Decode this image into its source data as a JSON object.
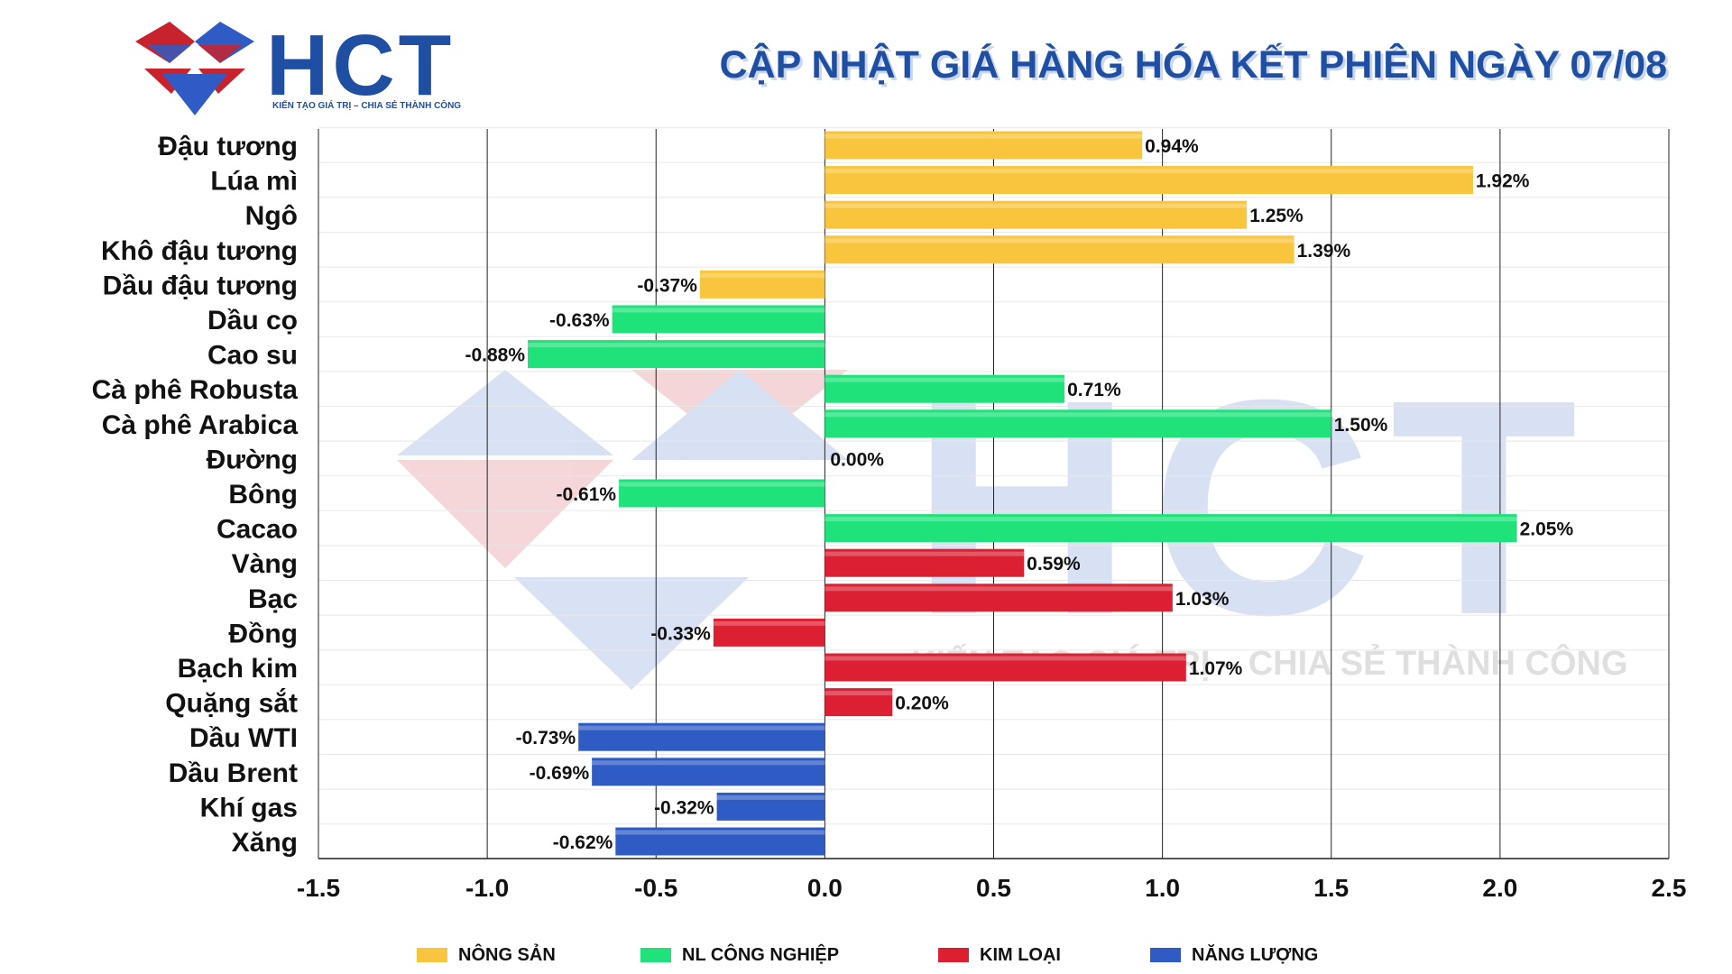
{
  "header": {
    "logo_text": "HCT",
    "logo_tagline": "KIẾN TẠO GIÁ TRỊ – CHIA SẺ THÀNH CÔNG",
    "title": "CẬP NHẬT GIÁ HÀNG HÓA KẾT PHIÊN NGÀY 07/08"
  },
  "watermark": {
    "text": "HCT",
    "tagline": "KIẾN TẠO GIÁ TRỊ – CHIA SẺ THÀNH CÔNG"
  },
  "colors": {
    "NÔNG SẢN": "#f9c53d",
    "NL CÔNG NGHIỆP": "#1fe27a",
    "KIM LOẠI": "#dd1f32",
    "NĂNG LƯỢNG": "#2f5cc4",
    "brand": "#1f4fa3"
  },
  "legend": {
    "items": [
      "NÔNG SẢN",
      "NL CÔNG NGHIỆP",
      "KIM LOẠI",
      "NĂNG LƯỢNG"
    ]
  },
  "chart_data": {
    "type": "bar",
    "orientation": "horizontal",
    "title": "CẬP NHẬT GIÁ HÀNG HÓA KẾT PHIÊN NGÀY 07/08",
    "xlabel": "",
    "ylabel": "",
    "xlim": [
      -1.5,
      2.5
    ],
    "xticks": [
      -1.5,
      -1.0,
      -0.5,
      0.0,
      0.5,
      1.0,
      1.5,
      2.0,
      2.5
    ],
    "xtick_labels": [
      "-1.5",
      "-1.0",
      "-0.5",
      "0.0",
      "0.5",
      "1.0",
      "1.5",
      "2.0",
      "2.5"
    ],
    "grid": "vertical",
    "legend_position": "bottom",
    "categories": [
      "Đậu tương",
      "Lúa mì",
      "Ngô",
      "Khô đậu tương",
      "Dầu đậu tương",
      "Dầu cọ",
      "Cao su",
      "Cà phê Robusta",
      "Cà phê Arabica",
      "Đường",
      "Bông",
      "Cacao",
      "Vàng",
      "Bạc",
      "Đồng",
      "Bạch kim",
      "Quặng sắt",
      "Dầu WTI",
      "Dầu Brent",
      "Khí gas",
      "Xăng"
    ],
    "values": [
      0.94,
      1.92,
      1.25,
      1.39,
      -0.37,
      -0.63,
      -0.88,
      0.71,
      1.5,
      0.0,
      -0.61,
      2.05,
      0.59,
      1.03,
      -0.33,
      1.07,
      0.2,
      -0.73,
      -0.69,
      -0.32,
      -0.62
    ],
    "value_labels": [
      "0.94%",
      "1.92%",
      "1.25%",
      "1.39%",
      "-0.37%",
      "-0.63%",
      "-0.88%",
      "0.71%",
      "1.50%",
      "0.00%",
      "-0.61%",
      "2.05%",
      "0.59%",
      "1.03%",
      "-0.33%",
      "1.07%",
      "0.20%",
      "-0.73%",
      "-0.69%",
      "-0.32%",
      "-0.62%"
    ],
    "groups": [
      "NÔNG SẢN",
      "NÔNG SẢN",
      "NÔNG SẢN",
      "NÔNG SẢN",
      "NÔNG SẢN",
      "NL CÔNG NGHIỆP",
      "NL CÔNG NGHIỆP",
      "NL CÔNG NGHIỆP",
      "NL CÔNG NGHIỆP",
      "NL CÔNG NGHIỆP",
      "NL CÔNG NGHIỆP",
      "NL CÔNG NGHIỆP",
      "KIM LOẠI",
      "KIM LOẠI",
      "KIM LOẠI",
      "KIM LOẠI",
      "KIM LOẠI",
      "NĂNG LƯỢNG",
      "NĂNG LƯỢNG",
      "NĂNG LƯỢNG",
      "NĂNG LƯỢNG"
    ]
  }
}
